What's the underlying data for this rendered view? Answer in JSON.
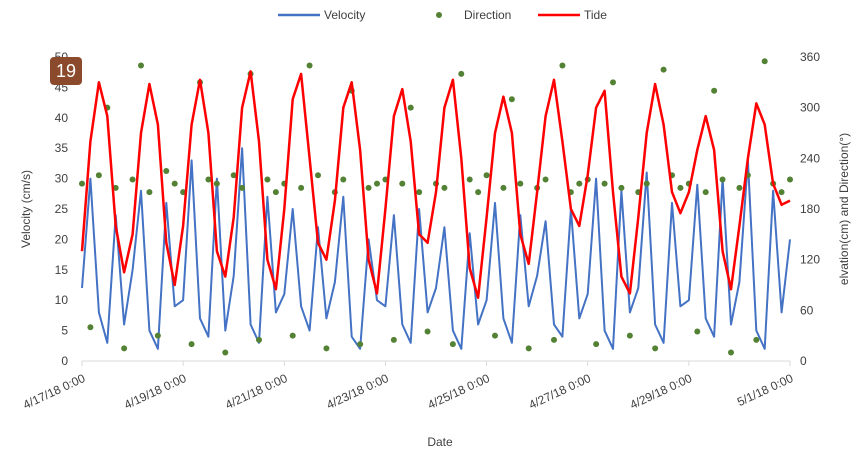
{
  "badge": "19",
  "chart_data": {
    "type": "combo",
    "x_label": "Date",
    "y_label": "Velocity (cm/s)",
    "y2_label": "elvation(cm) and Direction(°)",
    "x": [
      "4/17/18 0:00",
      "4/17/18 4:00",
      "4/17/18 8:00",
      "4/17/18 12:00",
      "4/17/18 16:00",
      "4/17/18 20:00",
      "4/18/18 0:00",
      "4/18/18 4:00",
      "4/18/18 8:00",
      "4/18/18 12:00",
      "4/18/18 16:00",
      "4/18/18 20:00",
      "4/19/18 0:00",
      "4/19/18 4:00",
      "4/19/18 8:00",
      "4/19/18 12:00",
      "4/19/18 16:00",
      "4/19/18 20:00",
      "4/20/18 0:00",
      "4/20/18 4:00",
      "4/20/18 8:00",
      "4/20/18 12:00",
      "4/20/18 16:00",
      "4/20/18 20:00",
      "4/21/18 0:00",
      "4/21/18 4:00",
      "4/21/18 8:00",
      "4/21/18 12:00",
      "4/21/18 16:00",
      "4/21/18 20:00",
      "4/22/18 0:00",
      "4/22/18 4:00",
      "4/22/18 8:00",
      "4/22/18 12:00",
      "4/22/18 16:00",
      "4/22/18 20:00",
      "4/23/18 0:00",
      "4/23/18 4:00",
      "4/23/18 8:00",
      "4/23/18 12:00",
      "4/23/18 16:00",
      "4/23/18 20:00",
      "4/24/18 0:00",
      "4/24/18 4:00",
      "4/24/18 8:00",
      "4/24/18 12:00",
      "4/24/18 16:00",
      "4/24/18 20:00",
      "4/25/18 0:00",
      "4/25/18 4:00",
      "4/25/18 8:00",
      "4/25/18 12:00",
      "4/25/18 16:00",
      "4/25/18 20:00",
      "4/26/18 0:00",
      "4/26/18 4:00",
      "4/26/18 8:00",
      "4/26/18 12:00",
      "4/26/18 16:00",
      "4/26/18 20:00",
      "4/27/18 0:00",
      "4/27/18 4:00",
      "4/27/18 8:00",
      "4/27/18 12:00",
      "4/27/18 16:00",
      "4/27/18 20:00",
      "4/28/18 0:00",
      "4/28/18 4:00",
      "4/28/18 8:00",
      "4/28/18 12:00",
      "4/28/18 16:00",
      "4/28/18 20:00",
      "4/29/18 0:00",
      "4/29/18 4:00",
      "4/29/18 8:00",
      "4/29/18 12:00",
      "4/29/18 16:00",
      "4/29/18 20:00",
      "4/30/18 0:00",
      "4/30/18 4:00",
      "4/30/18 8:00",
      "4/30/18 12:00",
      "4/30/18 16:00",
      "4/30/18 20:00",
      "5/1/18 0:00"
    ],
    "series": [
      {
        "name": "Velocity",
        "type": "line",
        "color": "#4472c4",
        "axis": "y",
        "values": [
          12,
          30,
          8,
          3,
          24,
          6,
          15,
          28,
          5,
          2,
          26,
          9,
          10,
          33,
          7,
          4,
          30,
          5,
          14,
          35,
          6,
          3,
          27,
          8,
          11,
          25,
          9,
          5,
          22,
          7,
          13,
          27,
          4,
          2,
          20,
          10,
          9,
          24,
          6,
          3,
          25,
          8,
          12,
          22,
          5,
          2,
          21,
          6,
          10,
          26,
          7,
          3,
          24,
          9,
          14,
          23,
          6,
          4,
          25,
          7,
          11,
          30,
          5,
          2,
          28,
          8,
          12,
          31,
          6,
          3,
          26,
          9,
          10,
          29,
          7,
          4,
          30,
          6,
          13,
          33,
          5,
          2,
          28,
          8,
          20
        ]
      },
      {
        "name": "Direction",
        "type": "scatter",
        "color": "#548235",
        "axis": "y2",
        "values": [
          210,
          40,
          220,
          300,
          205,
          15,
          215,
          350,
          200,
          30,
          225,
          210,
          200,
          20,
          330,
          215,
          210,
          10,
          220,
          205,
          340,
          25,
          215,
          200,
          210,
          30,
          205,
          350,
          220,
          15,
          200,
          215,
          320,
          20,
          205,
          210,
          215,
          25,
          210,
          300,
          200,
          35,
          210,
          205,
          20,
          340,
          215,
          200,
          220,
          30,
          205,
          310,
          210,
          15,
          205,
          215,
          25,
          350,
          200,
          210,
          215,
          20,
          210,
          330,
          205,
          30,
          200,
          210,
          15,
          345,
          220,
          205,
          210,
          35,
          200,
          320,
          215,
          10,
          205,
          220,
          25,
          355,
          210,
          200,
          215
        ]
      },
      {
        "name": "Tide",
        "type": "line",
        "color": "#ff0000",
        "axis": "y2",
        "values": [
          130,
          260,
          330,
          290,
          160,
          105,
          150,
          270,
          328,
          280,
          140,
          90,
          160,
          280,
          333,
          270,
          130,
          100,
          170,
          300,
          343,
          260,
          120,
          85,
          180,
          310,
          340,
          240,
          140,
          120,
          190,
          300,
          330,
          250,
          120,
          80,
          180,
          290,
          322,
          260,
          150,
          140,
          200,
          300,
          333,
          240,
          110,
          75,
          170,
          270,
          313,
          270,
          150,
          115,
          200,
          290,
          333,
          260,
          180,
          160,
          220,
          300,
          320,
          200,
          100,
          80,
          170,
          270,
          328,
          280,
          200,
          175,
          200,
          250,
          290,
          250,
          130,
          85,
          160,
          240,
          305,
          280,
          210,
          185,
          190
        ]
      }
    ],
    "xlim": [
      "4/17/18 0:00",
      "5/1/18 0:00"
    ],
    "xticks": [
      "4/17/18 0:00",
      "4/19/18 0:00",
      "4/21/18 0:00",
      "4/23/18 0:00",
      "4/25/18 0:00",
      "4/27/18 0:00",
      "4/29/18 0:00",
      "5/1/18 0:00"
    ],
    "ylim": [
      0,
      50
    ],
    "yticks": [
      0,
      5,
      10,
      15,
      20,
      25,
      30,
      35,
      40,
      45,
      50
    ],
    "y2lim": [
      0,
      360
    ],
    "y2ticks": [
      0,
      60,
      120,
      180,
      240,
      300,
      360
    ],
    "legend": "top",
    "grid": false
  }
}
